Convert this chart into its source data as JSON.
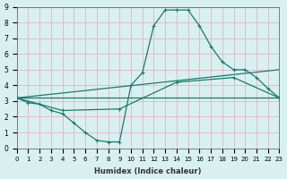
{
  "xlabel": "Humidex (Indice chaleur)",
  "ylabel": "",
  "bg_color": "#d8f0f0",
  "grid_color": "#e8a8b8",
  "line_color": "#1a7a6e",
  "xlim": [
    0,
    23
  ],
  "ylim": [
    0,
    9
  ],
  "xticks": [
    0,
    1,
    2,
    3,
    4,
    5,
    6,
    7,
    8,
    9,
    10,
    11,
    12,
    13,
    14,
    15,
    16,
    17,
    18,
    19,
    20,
    21,
    22,
    23
  ],
  "yticks": [
    0,
    1,
    2,
    3,
    4,
    5,
    6,
    7,
    8,
    9
  ],
  "line1_x": [
    0,
    1,
    2,
    3,
    4,
    5,
    6,
    7,
    8,
    9,
    10,
    11,
    12,
    13,
    14,
    15,
    16,
    17,
    18,
    19,
    20,
    21,
    22,
    23
  ],
  "line1_y": [
    3.2,
    2.9,
    2.8,
    2.4,
    2.2,
    1.6,
    1.0,
    0.5,
    0.4,
    0.4,
    4.0,
    4.8,
    7.8,
    8.8,
    8.8,
    8.8,
    7.8,
    6.5,
    5.5,
    5.0,
    5.0,
    4.5,
    3.8,
    3.2
  ],
  "line2_x": [
    0,
    23
  ],
  "line2_y": [
    3.2,
    5.0
  ],
  "line3_x": [
    0,
    4,
    9,
    14,
    19,
    23
  ],
  "line3_y": [
    3.2,
    2.4,
    2.5,
    4.2,
    4.5,
    3.2
  ],
  "line4_x": [
    0,
    23
  ],
  "line4_y": [
    3.2,
    3.2
  ]
}
